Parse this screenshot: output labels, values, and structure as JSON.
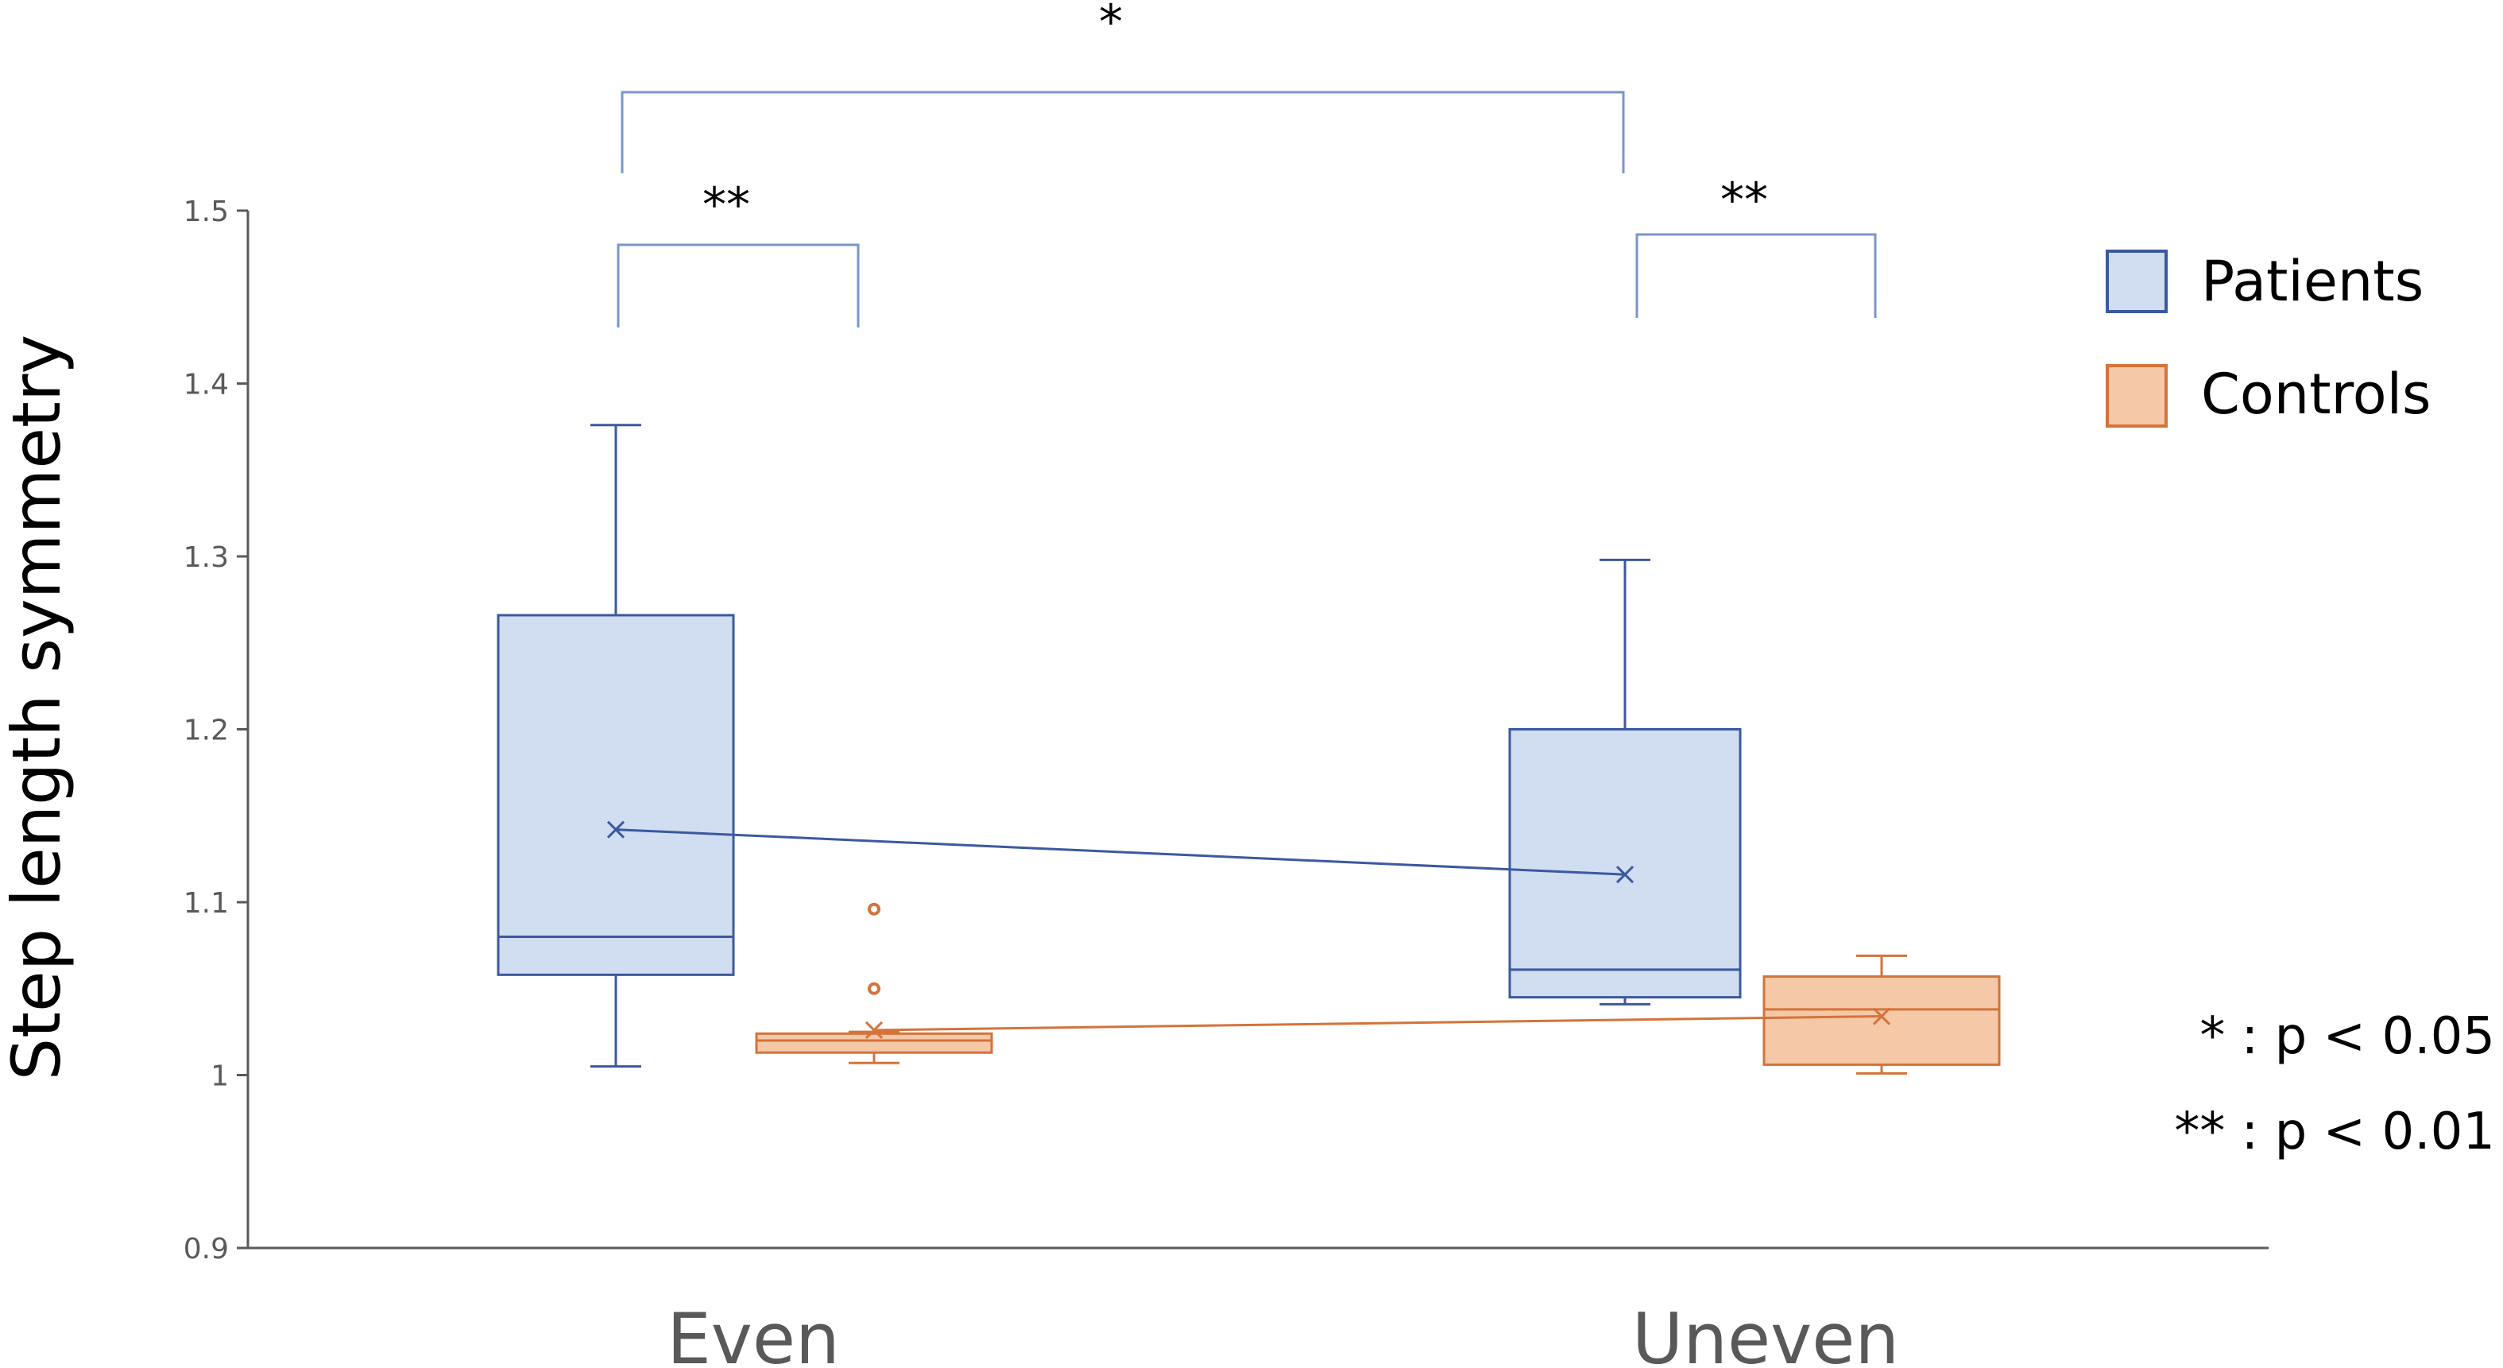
{
  "chart_data": {
    "type": "box",
    "ylabel": "Step length symmetry",
    "xlabel": "",
    "ylim": [
      0.9,
      1.5
    ],
    "yticks": [
      "0.9",
      "1",
      "1.1",
      "1.2",
      "1.3",
      "1.4",
      "1.5"
    ],
    "categories": [
      "Even",
      "Uneven"
    ],
    "grid": false,
    "legend_position": "top-right",
    "series": [
      {
        "name": "Patients",
        "fill": "#d1ddf1",
        "stroke": "#3a59a0",
        "boxes": [
          {
            "min": 1.005,
            "q1": 1.058,
            "median": 1.08,
            "q3": 1.266,
            "max": 1.376,
            "mean": 1.142,
            "outliers": []
          },
          {
            "min": 1.041,
            "q1": 1.045,
            "median": 1.061,
            "q3": 1.2,
            "max": 1.298,
            "mean": 1.116,
            "outliers": []
          }
        ]
      },
      {
        "name": "Controls",
        "fill": "#f5c8a8",
        "stroke": "#d4733a",
        "boxes": [
          {
            "min": 1.007,
            "q1": 1.013,
            "median": 1.02,
            "q3": 1.024,
            "max": 1.025,
            "mean": 1.026,
            "outliers": [
              1.05,
              1.096
            ]
          },
          {
            "min": 1.001,
            "q1": 1.006,
            "median": 1.038,
            "q3": 1.057,
            "max": 1.069,
            "mean": 1.034,
            "outliers": []
          }
        ]
      }
    ],
    "significance": [
      {
        "label": "**",
        "between": [
          "Patients Even",
          "Controls Even"
        ]
      },
      {
        "label": "**",
        "between": [
          "Patients Uneven",
          "Controls Uneven"
        ]
      },
      {
        "label": "*",
        "between": [
          "Patients Even",
          "Patients Uneven"
        ]
      }
    ],
    "notes": [
      "* : p < 0.05",
      "** : p < 0.01"
    ]
  }
}
